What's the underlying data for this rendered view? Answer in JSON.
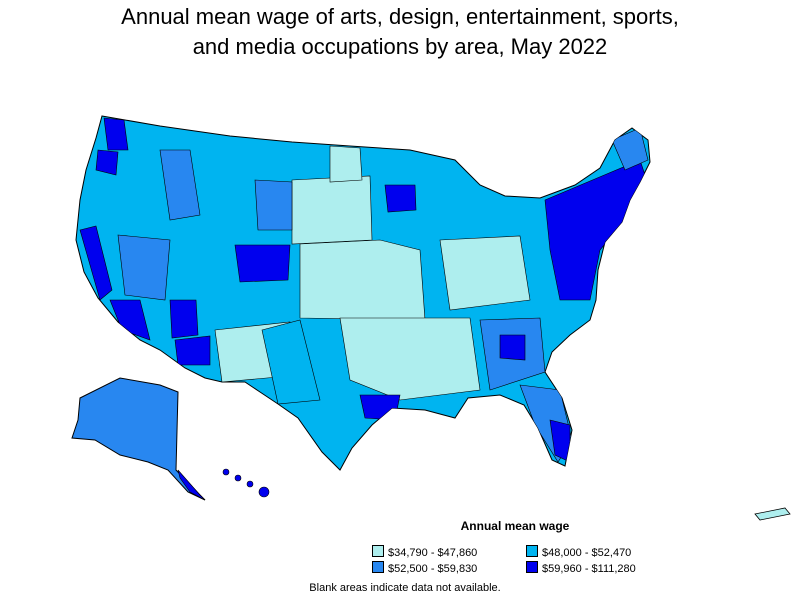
{
  "title_line1": "Annual mean wage of arts, design, entertainment, sports,",
  "title_line2": "and media occupations by area, May 2022",
  "legend": {
    "title": "Annual mean wage",
    "items": [
      {
        "label": "$34,790 - $47,860",
        "color": "#aeeeee"
      },
      {
        "label": "$48,000 - $52,470",
        "color": "#00b4f0"
      },
      {
        "label": "$52,500 - $59,830",
        "color": "#2887f0"
      },
      {
        "label": "$59,960 - $111,280",
        "color": "#0000ee"
      }
    ]
  },
  "note": "Blank areas indicate data not available."
}
